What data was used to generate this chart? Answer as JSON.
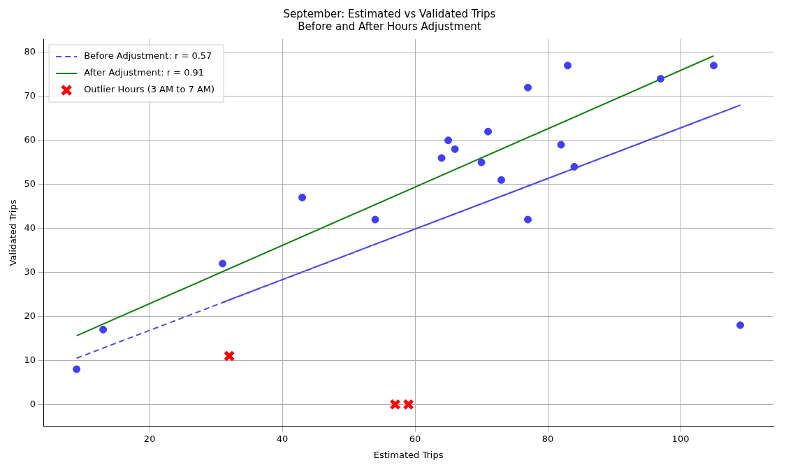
{
  "chart_data": {
    "type": "scatter",
    "title": "September: Estimated vs Validated Trips",
    "subtitle": "Before and After Hours Adjustment",
    "xlabel": "Estimated Trips",
    "ylabel": "Validated Trips",
    "xlim": [
      4,
      114
    ],
    "ylim": [
      -5,
      83
    ],
    "xticks": [
      20,
      40,
      60,
      80,
      100
    ],
    "yticks": [
      0,
      10,
      20,
      30,
      40,
      50,
      60,
      70,
      80
    ],
    "grid": true,
    "legend": "top left",
    "series": [
      {
        "type": "scatter",
        "color": "#4040f0",
        "marker": "circle",
        "x": [
          9,
          13,
          31,
          43,
          54,
          64,
          65,
          66,
          70,
          71,
          73,
          77,
          77,
          82,
          83,
          84,
          97,
          105,
          109
        ],
        "values": [
          8,
          17,
          32,
          47,
          42,
          56,
          60,
          58,
          55,
          62,
          51,
          72,
          42,
          59,
          77,
          54,
          74,
          77,
          18
        ]
      },
      {
        "type": "line",
        "name": "Before Adjustment: r = 0.57",
        "color": "#4f4fe6",
        "line_style": "dashed",
        "marker": "none",
        "x": [
          9,
          109
        ],
        "values": [
          10.5,
          68
        ]
      },
      {
        "type": "line",
        "color": "#4f4fe6",
        "line_style": "solid",
        "marker": "none",
        "x": [
          31,
          109
        ],
        "values": [
          23.2,
          68
        ]
      },
      {
        "type": "line",
        "name": "After Adjustment: r = 0.91",
        "color": "#108010",
        "line_style": "solid",
        "marker": "none",
        "x": [
          9,
          105
        ],
        "values": [
          15.6,
          79.2
        ]
      },
      {
        "type": "scatter",
        "name": "Outlier Hours (3 AM to 7 AM)",
        "color": "#ff0000",
        "marker": "cross",
        "x": [
          32,
          57,
          59
        ],
        "values": [
          11,
          0,
          0
        ]
      }
    ]
  }
}
